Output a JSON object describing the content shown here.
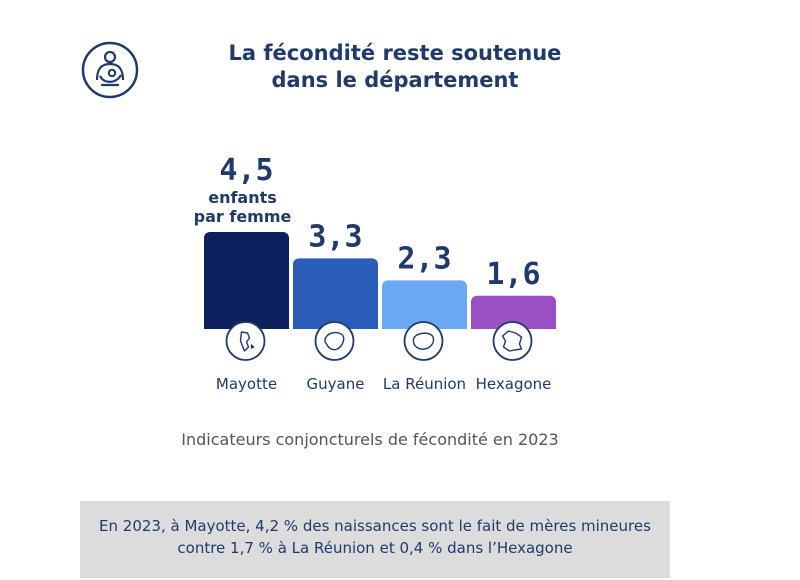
{
  "header": {
    "title_line1": "La fécondité reste soutenue",
    "title_line2": "dans le département",
    "logo_icon": "mother-child-icon"
  },
  "chart_data": {
    "type": "bar",
    "categories": [
      "Mayotte",
      "Guyane",
      "La Réunion",
      "Hexagone"
    ],
    "values": [
      4.5,
      3.3,
      2.3,
      1.6
    ],
    "value_labels": [
      "4,5",
      "3,3",
      "2,3",
      "1,6"
    ],
    "unit_label_line1": "enfants",
    "unit_label_line2": "par femme",
    "colors": [
      "#0d1f5c",
      "#2b5cb8",
      "#6aa9f2",
      "#9b4fc4"
    ],
    "category_icons": [
      "mayotte-map-icon",
      "guyane-map-icon",
      "reunion-map-icon",
      "france-map-icon"
    ],
    "title": "",
    "xlabel": "",
    "ylabel": "",
    "grid": false
  },
  "caption": "Indicateurs conjoncturels de fécondité en 2023",
  "note": {
    "line1": "En 2023, à Mayotte, 4,2 % des naissances  sont le fait de mères mineures",
    "line2": "contre 1,7 % à La Réunion et 0,4 % dans l’Hexagone"
  }
}
